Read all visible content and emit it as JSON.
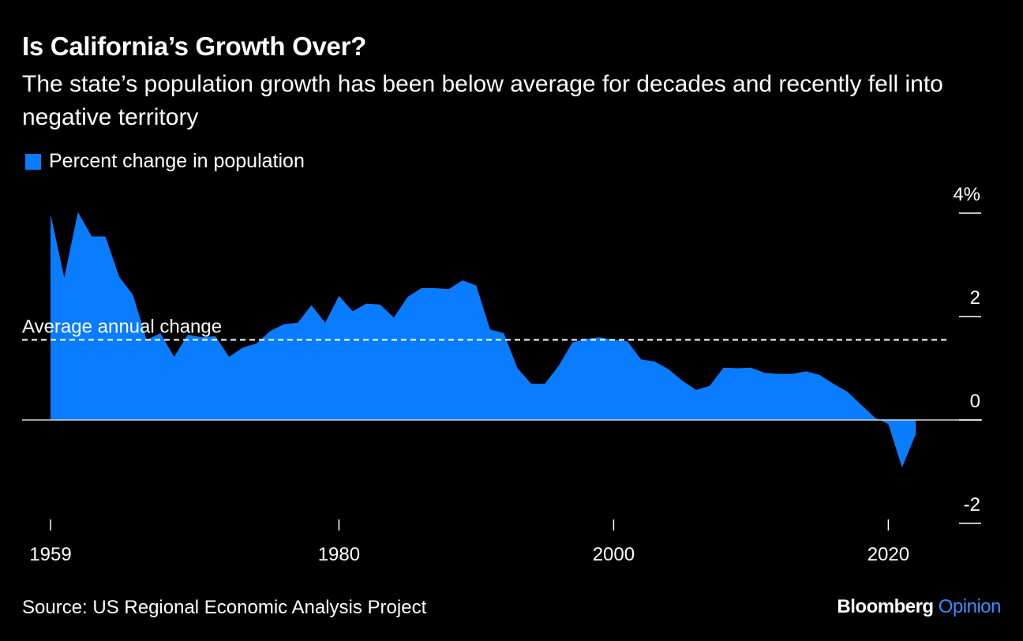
{
  "header": {
    "title": "Is California’s Growth Over?",
    "subtitle": "The state’s population growth has been below average for decades and recently fell into negative territory"
  },
  "legend": {
    "label": "Percent change in population",
    "color": "#0a7cff"
  },
  "footer": {
    "source": "Source: US Regional Economic Analysis Project",
    "brand_main": "Bloomberg",
    "brand_accent": "Opinion"
  },
  "chart_data": {
    "type": "area",
    "title": "Is California’s Growth Over?",
    "subtitle": "The state’s population growth has been below average for decades and recently fell into negative territory",
    "xlabel": "",
    "ylabel": "",
    "xlim": [
      1959,
      2025
    ],
    "ylim": [
      -2,
      4
    ],
    "x_ticks": [
      1959,
      1980,
      2000,
      2020
    ],
    "y_ticks": [
      4,
      2,
      0,
      -2
    ],
    "y_tick_labels": [
      "4%",
      "2",
      "0",
      "-2"
    ],
    "y_axis_position": "right",
    "grid": false,
    "legend_position": "top-left",
    "series": [
      {
        "name": "Percent change in population",
        "color": "#0a7cff",
        "x": [
          1959,
          1960,
          1961,
          1962,
          1963,
          1964,
          1965,
          1966,
          1967,
          1968,
          1969,
          1970,
          1971,
          1972,
          1973,
          1974,
          1975,
          1976,
          1977,
          1978,
          1979,
          1980,
          1981,
          1982,
          1983,
          1984,
          1985,
          1986,
          1987,
          1988,
          1989,
          1990,
          1991,
          1992,
          1993,
          1994,
          1995,
          1996,
          1997,
          1998,
          1999,
          2000,
          2001,
          2002,
          2003,
          2004,
          2005,
          2006,
          2007,
          2008,
          2009,
          2010,
          2011,
          2012,
          2013,
          2014,
          2015,
          2016,
          2017,
          2018,
          2019,
          2020,
          2021,
          2022
        ],
        "values": [
          3.98,
          2.75,
          4.02,
          3.55,
          3.55,
          2.77,
          2.42,
          1.55,
          1.68,
          1.22,
          1.65,
          1.6,
          1.62,
          1.22,
          1.4,
          1.48,
          1.72,
          1.85,
          1.88,
          2.22,
          1.88,
          2.4,
          2.1,
          2.25,
          2.23,
          1.98,
          2.38,
          2.55,
          2.55,
          2.53,
          2.7,
          2.6,
          1.75,
          1.68,
          1.0,
          0.7,
          0.7,
          1.05,
          1.5,
          1.57,
          1.6,
          1.55,
          1.52,
          1.17,
          1.13,
          0.98,
          0.76,
          0.58,
          0.66,
          1.01,
          1.0,
          1.01,
          0.91,
          0.89,
          0.89,
          0.94,
          0.87,
          0.7,
          0.55,
          0.3,
          0.05,
          -0.08,
          -0.92,
          -0.27
        ]
      }
    ],
    "reference_line": {
      "label": "Average annual change",
      "value": 1.55
    }
  }
}
